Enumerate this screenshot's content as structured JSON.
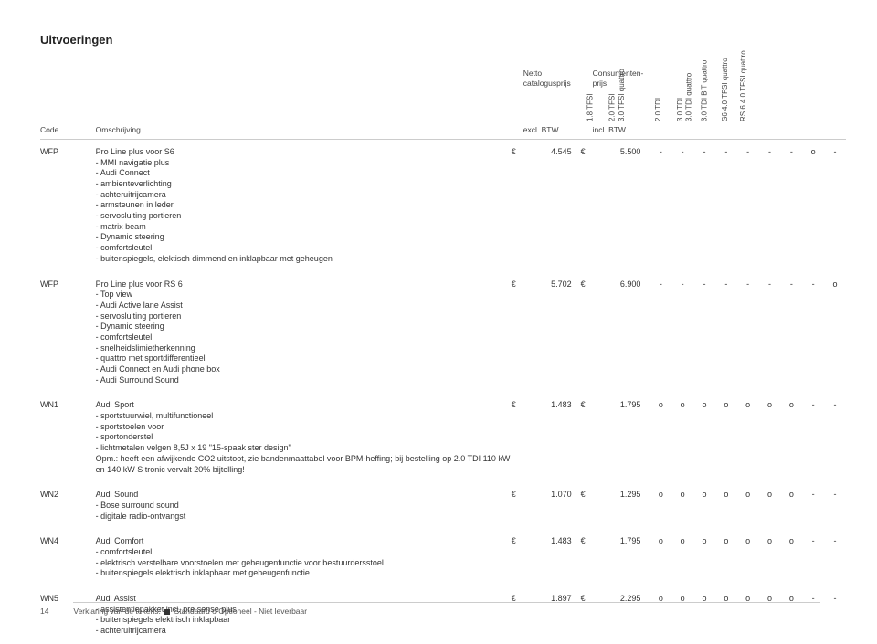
{
  "title": "Uitvoeringen",
  "header": {
    "code": "Code",
    "desc": "Omschrijving",
    "priceNet1": "Netto",
    "priceNet2": "catalogusprijs",
    "priceNet3": "excl. BTW",
    "priceCons1": "Consumenten-",
    "priceCons2": "prijs",
    "priceCons3": "incl. BTW",
    "variants": [
      "1.8 TFSI",
      "2.0 TFSI",
      "3.0 TFSI quattro",
      "2.0 TDI",
      "3.0 TDI",
      "3.0 TDI quattro",
      "3.0 TDI BiT quattro",
      "S6 4.0 TFSI quattro",
      "RS 6 4.0 TFSI quattro"
    ]
  },
  "rows": [
    {
      "code": "WFP",
      "name": "Pro Line plus voor S6",
      "sub": [
        "MMI navigatie plus",
        "Audi Connect",
        "ambienteverlichting",
        "achteruitrijcamera",
        "armsteunen in leder",
        "servosluiting portieren",
        "matrix beam",
        "Dynamic steering",
        "comfortsleutel",
        "buitenspiegels, elektisch dimmend en inklapbaar met geheugen"
      ],
      "net": "4.545",
      "cons": "5.500",
      "marks": [
        "-",
        "-",
        "-",
        "-",
        "-",
        "-",
        "-",
        "o",
        "-"
      ]
    },
    {
      "code": "WFP",
      "name": "Pro Line plus voor RS 6",
      "sub": [
        "Top view",
        "Audi Active lane Assist",
        "servosluiting portieren",
        "Dynamic steering",
        "comfortsleutel",
        "snelheidslimietherkenning",
        "quattro met sportdifferentieel",
        "Audi Connect en Audi phone box",
        "Audi Surround Sound"
      ],
      "net": "5.702",
      "cons": "6.900",
      "marks": [
        "-",
        "-",
        "-",
        "-",
        "-",
        "-",
        "-",
        "-",
        "o"
      ]
    },
    {
      "code": "WN1",
      "name": "Audi Sport",
      "sub": [
        "sportstuurwiel, multifunctioneel",
        "sportstoelen voor",
        "sportonderstel",
        "lichtmetalen velgen 8,5J x 19 \"15-spaak ster design\""
      ],
      "note": "Opm.: heeft een afwijkende CO2 uitstoot, zie bandenmaattabel voor BPM-heffing; bij bestelling op 2.0 TDI 110 kW en 140 kW S tronic vervalt 20% bijtelling!",
      "net": "1.483",
      "cons": "1.795",
      "marks": [
        "o",
        "o",
        "o",
        "o",
        "o",
        "o",
        "o",
        "-",
        "-"
      ]
    },
    {
      "code": "WN2",
      "name": "Audi Sound",
      "sub": [
        "Bose surround sound",
        "digitale radio-ontvangst"
      ],
      "net": "1.070",
      "cons": "1.295",
      "marks": [
        "o",
        "o",
        "o",
        "o",
        "o",
        "o",
        "o",
        "-",
        "-"
      ]
    },
    {
      "code": "WN4",
      "name": "Audi Comfort",
      "sub": [
        "comfortsleutel",
        "elektrisch verstelbare voorstoelen met geheugenfunctie voor bestuurdersstoel",
        "buitenspiegels elektrisch inklapbaar met geheugenfunctie"
      ],
      "net": "1.483",
      "cons": "1.795",
      "marks": [
        "o",
        "o",
        "o",
        "o",
        "o",
        "o",
        "o",
        "-",
        "-"
      ]
    },
    {
      "code": "WN5",
      "name": "Audi Assist",
      "sub": [
        "assistentiepakket incl. pre sense plus",
        "buitenspiegels elektrisch inklapbaar",
        "achteruitrijcamera"
      ],
      "net": "1.897",
      "cons": "2.295",
      "marks": [
        "o",
        "o",
        "o",
        "o",
        "o",
        "o",
        "o",
        "-",
        "-"
      ]
    }
  ],
  "footer": {
    "page": "14",
    "legend_pre": "Verklaring van de tekens: ",
    "legend_std": " Standaard  o Optioneel  - Niet leverbaar"
  },
  "euro": "€"
}
